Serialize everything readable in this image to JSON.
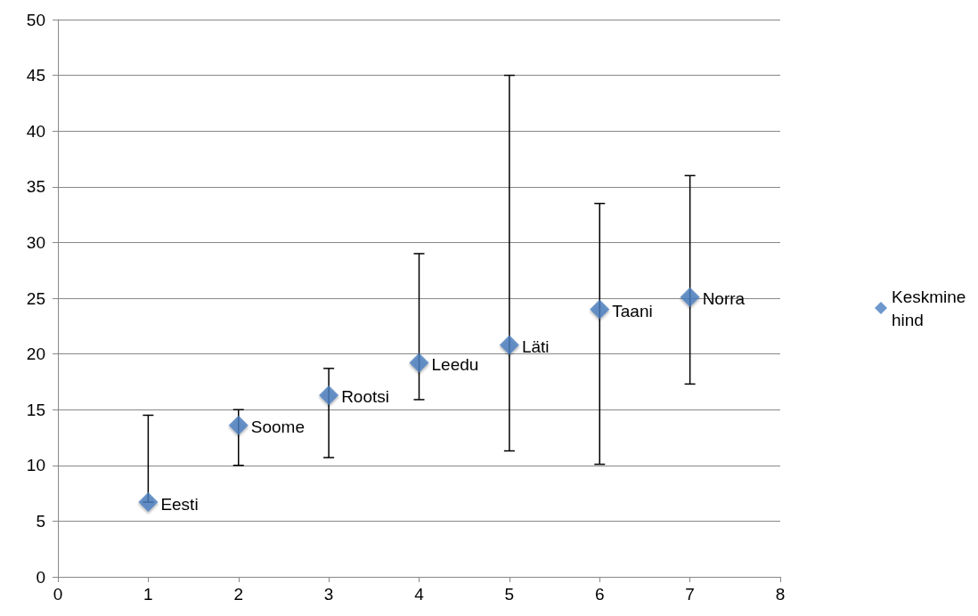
{
  "chart_data": {
    "type": "scatter",
    "x": [
      1,
      2,
      3,
      4,
      5,
      6,
      7
    ],
    "series": [
      {
        "name": "Keskmine hind",
        "color": "#4a7ebf",
        "values": [
          6.7,
          13.6,
          16.3,
          19.2,
          20.8,
          24.0,
          25.1
        ],
        "errors": [
          [
            6.7,
            14.5
          ],
          [
            10.0,
            15.0
          ],
          [
            10.7,
            18.7
          ],
          [
            15.9,
            29.0
          ],
          [
            11.3,
            45.0
          ],
          [
            10.1,
            33.5
          ],
          [
            17.3,
            36.0
          ]
        ]
      }
    ],
    "annotations": [
      {
        "text": "Eesti",
        "x": 1,
        "y": 6.7
      },
      {
        "text": "Soome",
        "x": 2,
        "y": 13.6
      },
      {
        "text": "Rootsi",
        "x": 3,
        "y": 16.3
      },
      {
        "text": "Leedu",
        "x": 4,
        "y": 19.2
      },
      {
        "text": "Läti",
        "x": 5,
        "y": 20.8
      },
      {
        "text": "Taani",
        "x": 6,
        "y": 24.0
      },
      {
        "text": "Norra",
        "x": 7,
        "y": 25.1
      }
    ],
    "xlim": [
      0,
      8
    ],
    "xticks": [
      0,
      1,
      2,
      3,
      4,
      5,
      6,
      7,
      8
    ],
    "ylim": [
      0,
      50
    ],
    "yticks": [
      0,
      5,
      10,
      15,
      20,
      25,
      30,
      35,
      40,
      45,
      50
    ],
    "grid": "y",
    "legend": "right",
    "marker": "diamond"
  }
}
